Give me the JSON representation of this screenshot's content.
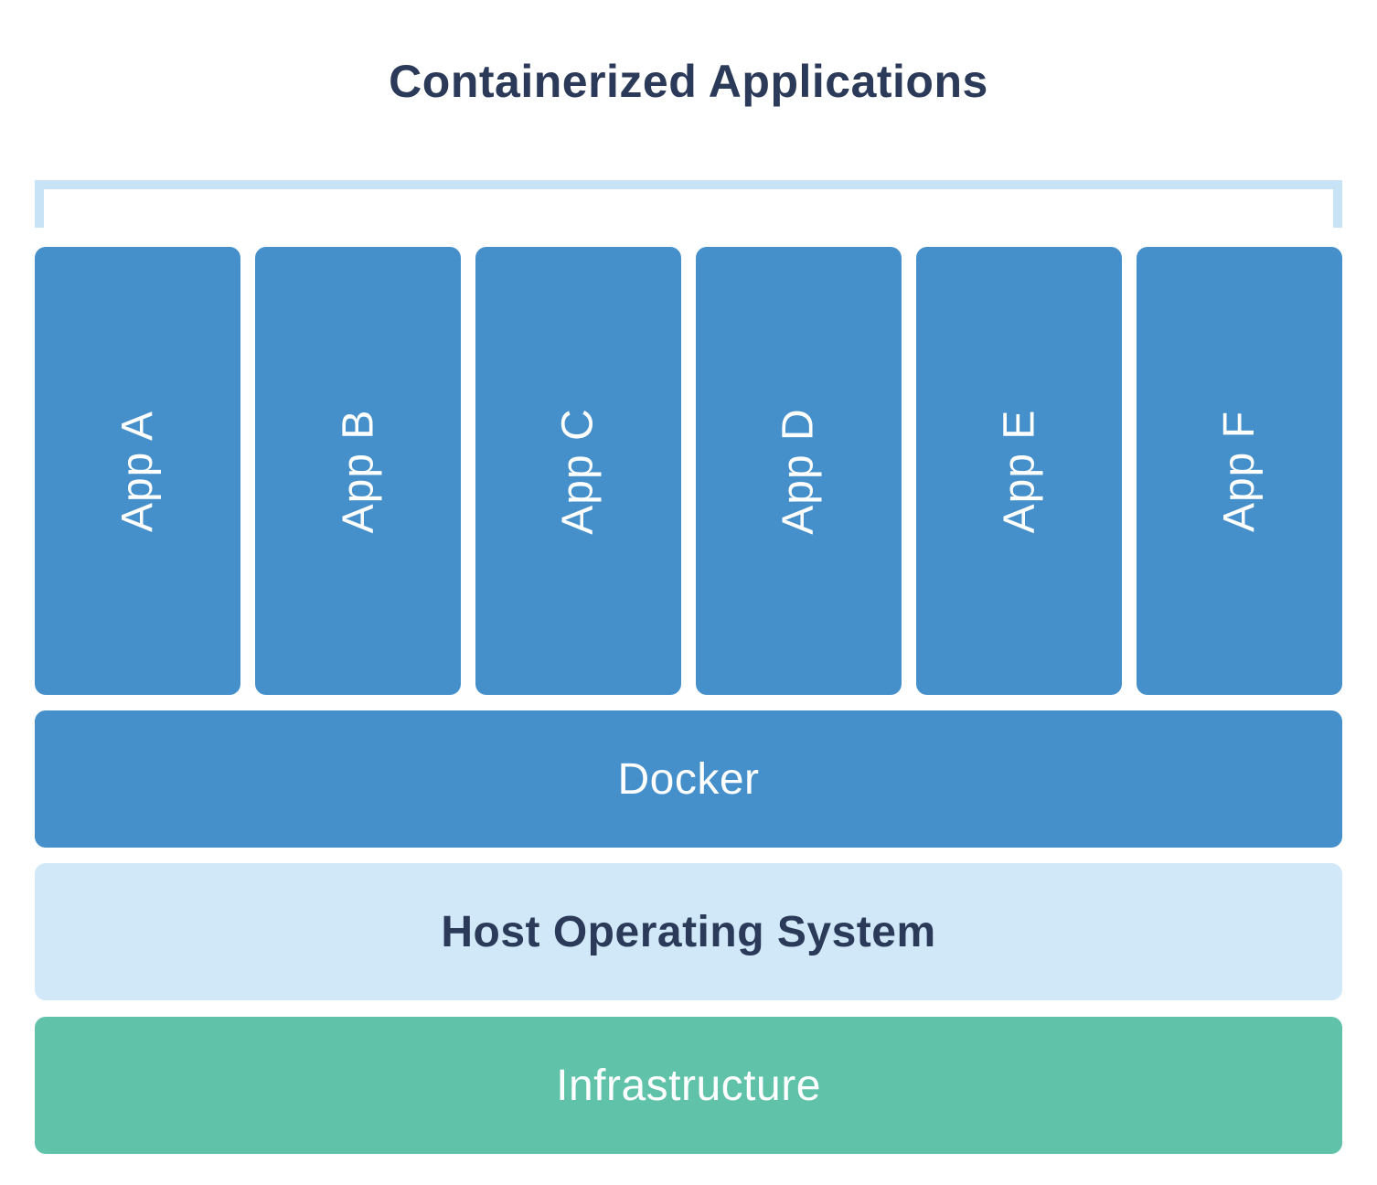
{
  "title": "Containerized Applications",
  "apps": [
    {
      "label": "App A"
    },
    {
      "label": "App B"
    },
    {
      "label": "App C"
    },
    {
      "label": "App D"
    },
    {
      "label": "App E"
    },
    {
      "label": "App F"
    }
  ],
  "layers": {
    "docker": "Docker",
    "host_os": "Host Operating System",
    "infrastructure": "Infrastructure"
  },
  "colors": {
    "container_blue": "#4590CB",
    "host_os_light_blue": "#D0E8F8",
    "infrastructure_teal": "#5FC2A9",
    "title_navy": "#2A3A58",
    "bracket_light_blue": "#C9E3F6",
    "label_white": "#FFFFFF"
  }
}
